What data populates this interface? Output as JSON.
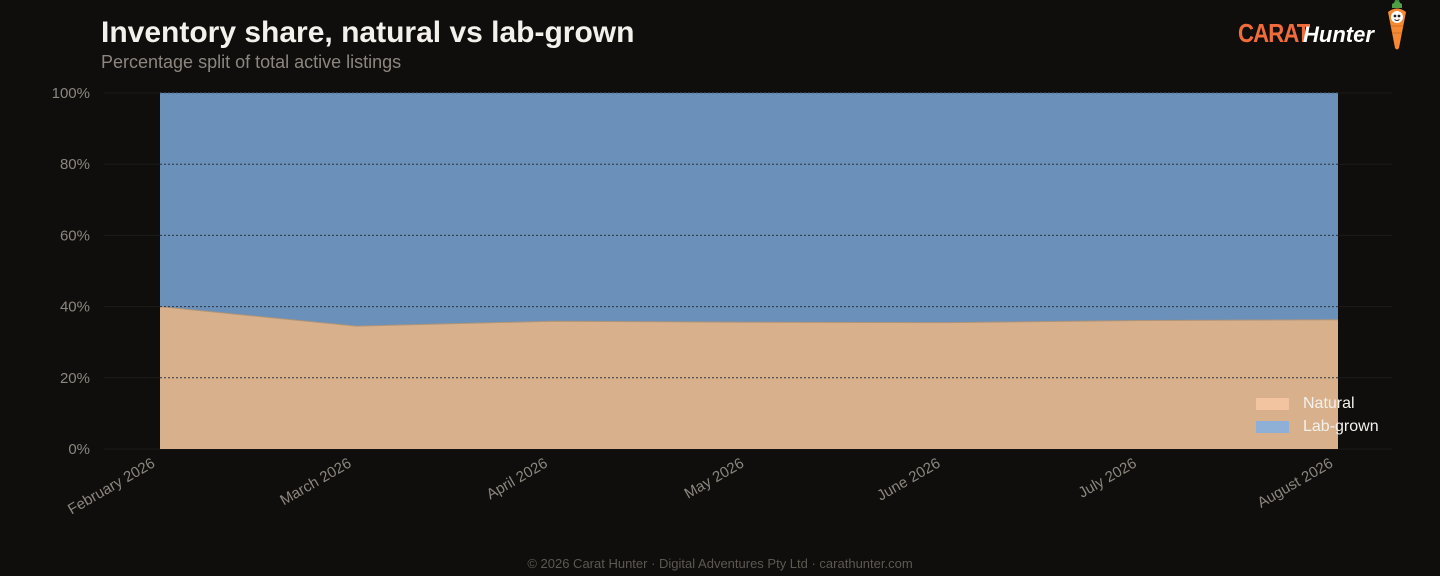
{
  "header": {
    "title": "Inventory share, natural vs lab-grown",
    "subtitle": "Percentage split of total active listings"
  },
  "logo": {
    "word1": "CARAT",
    "word2": "Hunter",
    "mascot_icon": "carrot-mascot-icon"
  },
  "footer": {
    "text": "© 2026 Carat Hunter · Digital Adventures Pty Ltd · carathunter.com"
  },
  "colors": {
    "background": "#0f0e0d",
    "natural": "#d8b08c",
    "lab_grown": "#6b90b9",
    "legend_natural": "#f2c4a0",
    "legend_lab_grown": "#8fb0d6",
    "brand_orange": "#f06c3b"
  },
  "chart_data": {
    "type": "area",
    "stacked": true,
    "percent": true,
    "x": [
      "February 2026",
      "March 2026",
      "April 2026",
      "May 2026",
      "June 2026",
      "July 2026",
      "August 2026"
    ],
    "series": [
      {
        "name": "Natural",
        "values": [
          40.0,
          34.5,
          35.9,
          35.6,
          35.5,
          36.1,
          36.3
        ]
      },
      {
        "name": "Lab-grown",
        "values": [
          60.0,
          65.5,
          64.1,
          64.4,
          64.5,
          63.9,
          63.7
        ]
      }
    ],
    "ylim": [
      0,
      100
    ],
    "yticks": [
      "0%",
      "20%",
      "40%",
      "60%",
      "80%",
      "100%"
    ],
    "ytick_values": [
      0,
      20,
      40,
      60,
      80,
      100
    ],
    "grid": true,
    "legend_position": "bottom-right"
  }
}
